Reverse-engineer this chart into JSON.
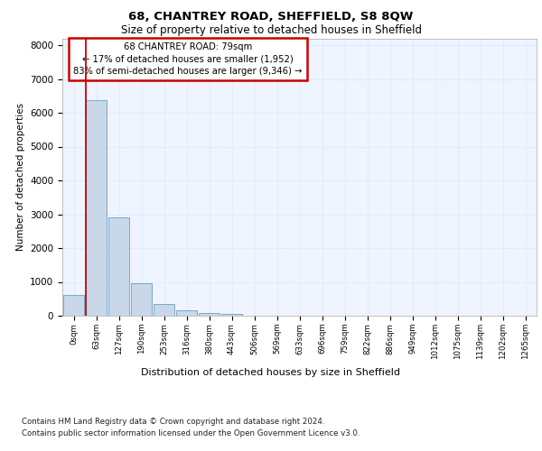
{
  "title1": "68, CHANTREY ROAD, SHEFFIELD, S8 8QW",
  "title2": "Size of property relative to detached houses in Sheffield",
  "xlabel": "Distribution of detached houses by size in Sheffield",
  "ylabel": "Number of detached properties",
  "footer1": "Contains HM Land Registry data © Crown copyright and database right 2024.",
  "footer2": "Contains public sector information licensed under the Open Government Licence v3.0.",
  "bar_labels": [
    "0sqm",
    "63sqm",
    "127sqm",
    "190sqm",
    "253sqm",
    "316sqm",
    "380sqm",
    "443sqm",
    "506sqm",
    "569sqm",
    "633sqm",
    "696sqm",
    "759sqm",
    "822sqm",
    "886sqm",
    "949sqm",
    "1012sqm",
    "1075sqm",
    "1139sqm",
    "1202sqm",
    "1265sqm"
  ],
  "bar_values": [
    620,
    6380,
    2920,
    960,
    360,
    150,
    80,
    50,
    0,
    0,
    0,
    0,
    0,
    0,
    0,
    0,
    0,
    0,
    0,
    0,
    0
  ],
  "bar_color": "#c8d8e8",
  "bar_edge_color": "#7aa8cc",
  "property_line_x": 1,
  "annotation_title": "68 CHANTREY ROAD: 79sqm",
  "annotation_line1": "← 17% of detached houses are smaller (1,952)",
  "annotation_line2": "83% of semi-detached houses are larger (9,346) →",
  "annotation_box_color": "#ffffff",
  "annotation_box_edge": "#cc0000",
  "red_line_color": "#cc0000",
  "grid_color": "#ddeeff",
  "bg_color": "#f0f4ff",
  "ylim": [
    0,
    8200
  ],
  "yticks": [
    0,
    1000,
    2000,
    3000,
    4000,
    5000,
    6000,
    7000,
    8000
  ]
}
